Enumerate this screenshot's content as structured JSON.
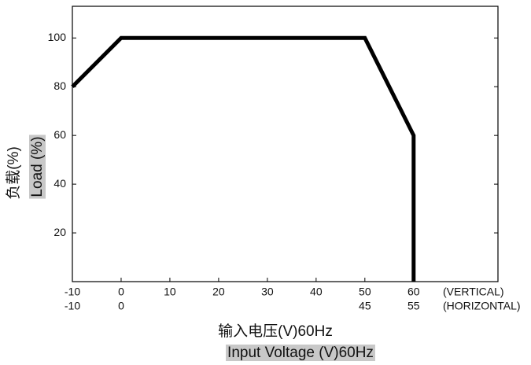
{
  "chart_data": {
    "type": "line",
    "x": [
      -10,
      0,
      50,
      60,
      60
    ],
    "values": [
      80,
      100,
      100,
      60,
      0
    ],
    "color": "#000000",
    "xlim": [
      -10,
      77.3
    ],
    "ylim": [
      0,
      113
    ],
    "xticks": [
      -10,
      0,
      10,
      20,
      30,
      40,
      50,
      60
    ],
    "xticks_horizontal": [
      -10,
      0,
      {
        "value": 50,
        "label": "45"
      },
      {
        "value": 60,
        "label": "55"
      }
    ],
    "xticks_label": "(VERTICAL)",
    "xticks_horizontal_label": "(HORIZONTAL)",
    "yticks": [
      20,
      40,
      60,
      80,
      100
    ],
    "ylabel": [
      "负载(%)",
      "Load (%)"
    ],
    "xlabel": [
      "输入电压(V)60Hz",
      "Input Voltage (V)60Hz"
    ]
  }
}
